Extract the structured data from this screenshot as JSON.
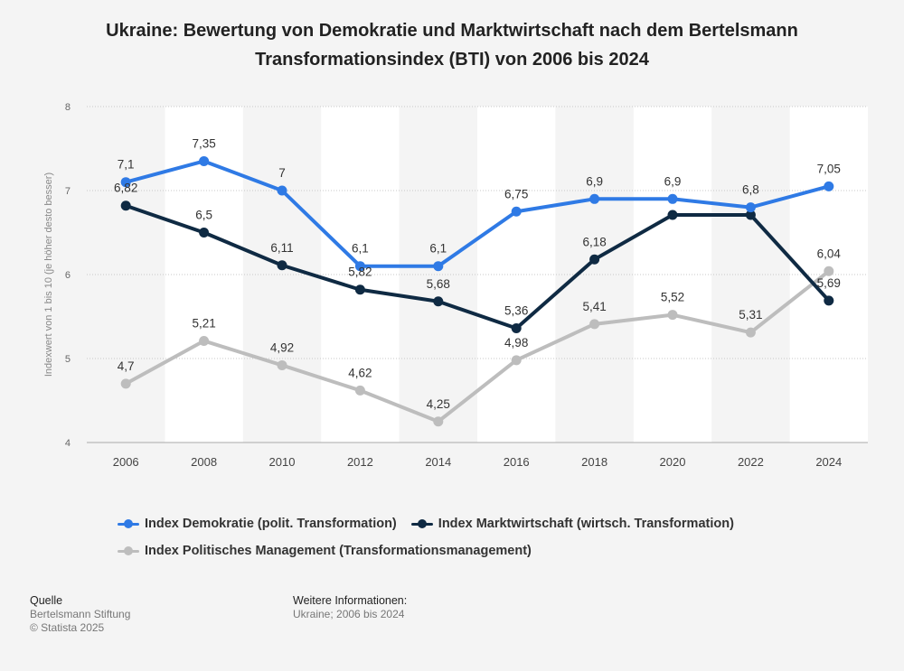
{
  "title": "Ukraine: Bewertung von Demokratie und Marktwirtschaft nach dem Bertelsmann Transformationsindex (BTI) von 2006 bis 2024",
  "chart_data": {
    "type": "line",
    "x": [
      "2006",
      "2008",
      "2010",
      "2012",
      "2014",
      "2016",
      "2018",
      "2020",
      "2022",
      "2024"
    ],
    "ylabel": "Indexwert von 1 bis 10 (je höher desto besser)",
    "ylim": [
      4,
      8
    ],
    "yticks": [
      "4",
      "5",
      "6",
      "7",
      "8"
    ],
    "grid": true,
    "legend_position": "bottom",
    "series": [
      {
        "name": "Index Demokratie (polit. Transformation)",
        "color": "#2f7ae5",
        "values": [
          7.1,
          7.35,
          7.0,
          6.1,
          6.1,
          6.75,
          6.9,
          6.9,
          6.8,
          7.05
        ],
        "labels": [
          "7,1",
          "7,35",
          "7",
          "6,1",
          "6,1",
          "6,75",
          "6,9",
          "6,9",
          "6,8",
          "7,05"
        ]
      },
      {
        "name": "Index Marktwirtschaft (wirtsch. Transformation)",
        "color": "#0f2a43",
        "values": [
          6.82,
          6.5,
          6.11,
          5.82,
          5.68,
          5.36,
          6.18,
          6.71,
          6.71,
          5.69
        ],
        "labels": [
          "6,82",
          "6,5",
          "6,11",
          "5,82",
          "5,68",
          "5,36",
          "6,18",
          "",
          "",
          "5,69"
        ]
      },
      {
        "name": "Index Politisches Management (Transformationsmanagement)",
        "color": "#bdbdbd",
        "values": [
          4.7,
          5.21,
          4.92,
          4.62,
          4.25,
          4.98,
          5.41,
          5.52,
          5.31,
          6.04
        ],
        "labels": [
          "4,7",
          "5,21",
          "4,92",
          "4,62",
          "4,25",
          "4,98",
          "5,41",
          "5,52",
          "5,31",
          "6,04"
        ]
      }
    ]
  },
  "footer": {
    "source_heading": "Quelle",
    "source_line1": "Bertelsmann Stiftung",
    "source_line2": "© Statista 2025",
    "info_heading": "Weitere Informationen:",
    "info_line1": "Ukraine; 2006 bis 2024"
  }
}
